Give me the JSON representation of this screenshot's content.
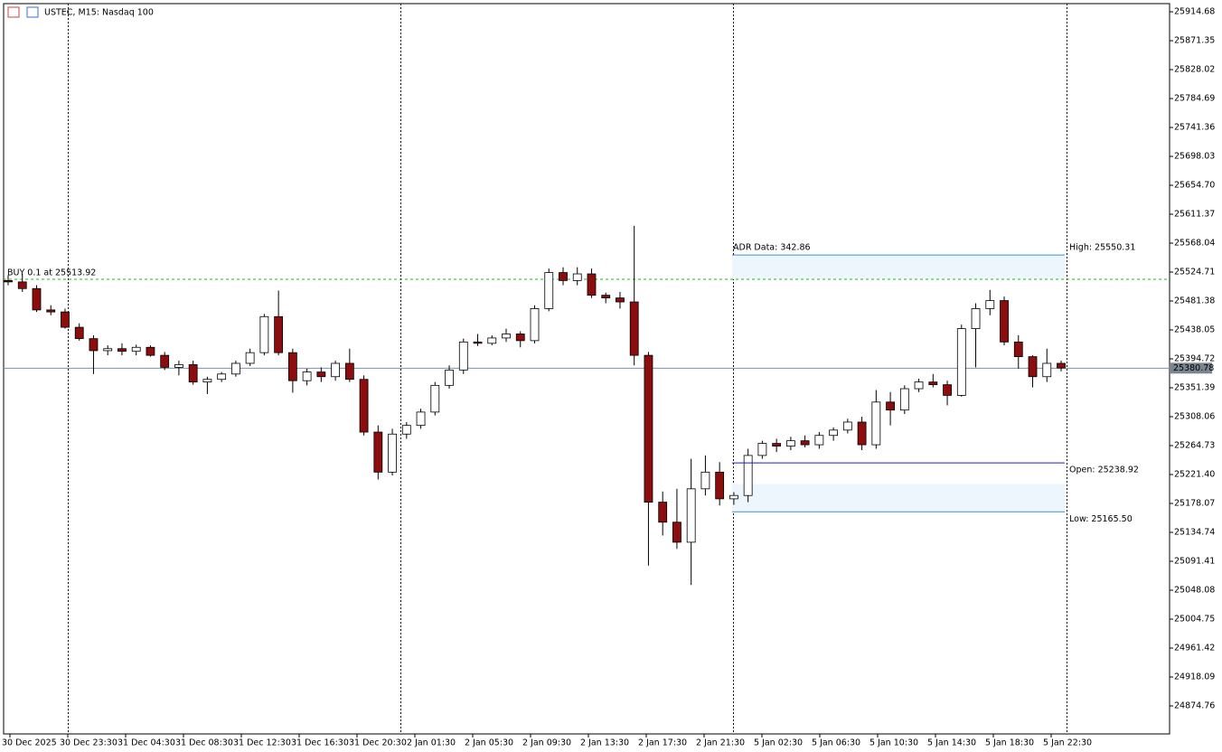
{
  "chart_data": {
    "type": "candlestick",
    "title": "USTEC, M15:  Nasdaq 100",
    "ylim": [
      24832.8,
      25926.9
    ],
    "yticks": [
      25914.68,
      25871.35,
      25828.02,
      25784.69,
      25741.36,
      25698.03,
      {
        "value": 25654.7,
        "label": "25654.70"
      },
      25611.37,
      25568.04,
      25524.71,
      25481.38,
      25438.05,
      25394.72,
      25351.39,
      25308.06,
      25264.73,
      {
        "value": 25221.4,
        "label": "25221.40"
      },
      25178.07,
      25134.74,
      25091.41,
      25048.08,
      25004.75,
      24961.42,
      24918.09,
      24874.76
    ],
    "time_labels": [
      "30 Dec 2025",
      "30 Dec 23:30",
      "31 Dec 04:30",
      "31 Dec 08:30",
      "31 Dec 12:30",
      "31 Dec 16:30",
      "31 Dec 20:30",
      "2 Jan 01:30",
      "2 Jan 05:30",
      "2 Jan 09:30",
      "2 Jan 13:30",
      "2 Jan 17:30",
      "2 Jan 21:30",
      "5 Jan 02:30",
      "5 Jan 06:30",
      "5 Jan 10:30",
      "5 Jan 14:30",
      "5 Jan 18:30",
      "5 Jan 22:30"
    ],
    "bull_color": "#ffffff",
    "bear_color": "#8b0d0d",
    "ohlc": [
      [
        25512,
        25520,
        25505,
        25510
      ],
      [
        25510,
        25522,
        25495,
        25500
      ],
      [
        25500,
        25505,
        25465,
        25468
      ],
      [
        25468,
        25475,
        25460,
        25465
      ],
      [
        25465,
        25470,
        25440,
        25442
      ],
      [
        25442,
        25448,
        25422,
        25425
      ],
      [
        25425,
        25430,
        25372,
        25407
      ],
      [
        25407,
        25415,
        25400,
        25410
      ],
      [
        25410,
        25418,
        25400,
        25406
      ],
      [
        25406,
        25416,
        25400,
        25412
      ],
      [
        25412,
        25415,
        25398,
        25400
      ],
      [
        25400,
        25405,
        25378,
        25382
      ],
      [
        25382,
        25392,
        25370,
        25386
      ],
      [
        25386,
        25392,
        25356,
        25360
      ],
      [
        25360,
        25368,
        25342,
        25364
      ],
      [
        25364,
        25375,
        25360,
        25372
      ],
      [
        25372,
        25392,
        25368,
        25388
      ],
      [
        25388,
        25410,
        25384,
        25404
      ],
      [
        25404,
        25462,
        25400,
        25458
      ],
      [
        25458,
        25497,
        25400,
        25404
      ],
      [
        25404,
        25410,
        25344,
        25362
      ],
      [
        25362,
        25380,
        25355,
        25375
      ],
      [
        25375,
        25382,
        25360,
        25368
      ],
      [
        25368,
        25392,
        25362,
        25388
      ],
      [
        25388,
        25410,
        25360,
        25364
      ],
      [
        25364,
        25370,
        25280,
        25285
      ],
      [
        25285,
        25295,
        25214,
        25225
      ],
      [
        25225,
        25290,
        25220,
        25282
      ],
      [
        25282,
        25300,
        25275,
        25295
      ],
      [
        25295,
        25320,
        25290,
        25315
      ],
      [
        25315,
        25360,
        25310,
        25355
      ],
      [
        25355,
        25385,
        25350,
        25378
      ],
      [
        25378,
        25425,
        25372,
        25420
      ],
      [
        25420,
        25432,
        25414,
        25418
      ],
      [
        25418,
        25430,
        25415,
        25426
      ],
      [
        25426,
        25440,
        25420,
        25432
      ],
      [
        25432,
        25436,
        25412,
        25422
      ],
      [
        25422,
        25475,
        25418,
        25470
      ],
      [
        25470,
        25530,
        25466,
        25524
      ],
      [
        25524,
        25532,
        25505,
        25512
      ],
      [
        25512,
        25532,
        25505,
        25522
      ],
      [
        25522,
        25530,
        25486,
        25490
      ],
      [
        25490,
        25494,
        25478,
        25486
      ],
      [
        25486,
        25495,
        25470,
        25480
      ],
      [
        25480,
        25594,
        25385,
        25400
      ],
      [
        25400,
        25405,
        25085,
        25180
      ],
      [
        25180,
        25196,
        25130,
        25150
      ],
      [
        25150,
        25200,
        25110,
        25120
      ],
      [
        25120,
        25245,
        25056,
        25200
      ],
      [
        25200,
        25250,
        25190,
        25225
      ],
      [
        25225,
        25240,
        25175,
        25185
      ],
      [
        25185,
        25195,
        25176,
        25190
      ],
      [
        25190,
        25260,
        25180,
        25250
      ],
      [
        25250,
        25272,
        25245,
        25268
      ],
      [
        25268,
        25275,
        25255,
        25264
      ],
      [
        25264,
        25278,
        25258,
        25272
      ],
      [
        25272,
        25280,
        25262,
        25266
      ],
      [
        25266,
        25285,
        25260,
        25280
      ],
      [
        25280,
        25292,
        25272,
        25288
      ],
      [
        25288,
        25305,
        25283,
        25300
      ],
      [
        25300,
        25308,
        25258,
        25266
      ],
      [
        25266,
        25348,
        25260,
        25330
      ],
      [
        25330,
        25345,
        25295,
        25318
      ],
      [
        25318,
        25355,
        25312,
        25350
      ],
      [
        25350,
        25365,
        25345,
        25360
      ],
      [
        25360,
        25372,
        25352,
        25356
      ],
      [
        25356,
        25362,
        25325,
        25340
      ],
      [
        25340,
        25446,
        25338,
        25440
      ],
      [
        25440,
        25478,
        25382,
        25470
      ],
      [
        25470,
        25498,
        25460,
        25482
      ],
      [
        25482,
        25488,
        25415,
        25420
      ],
      [
        25420,
        25430,
        25380,
        25398
      ],
      [
        25398,
        25400,
        25352,
        25368
      ],
      [
        25368,
        25410,
        25360,
        25388
      ],
      [
        25388,
        25392,
        25376,
        25381
      ]
    ],
    "current_price": 25380.78,
    "order_line": {
      "label": "BUY 0.1 at 25513.92",
      "value": 25513.92,
      "color": "#22bb22"
    },
    "adr": {
      "title": "ADR Data: 342.86",
      "levels": [
        {
          "label": "High: 25550.31",
          "value": 25550.31,
          "color": "#3d8fd8"
        },
        {
          "label": "Open: 25238.92",
          "value": 25238.92,
          "color": "#1a1ad8"
        },
        {
          "label": "Low: 25165.50",
          "value": 25165.5,
          "color": "#3d8fd8"
        }
      ],
      "zones": [
        [
          25514,
          25550.31
        ],
        [
          25165.5,
          25207
        ]
      ],
      "zone_color": "#eef6fd"
    }
  }
}
